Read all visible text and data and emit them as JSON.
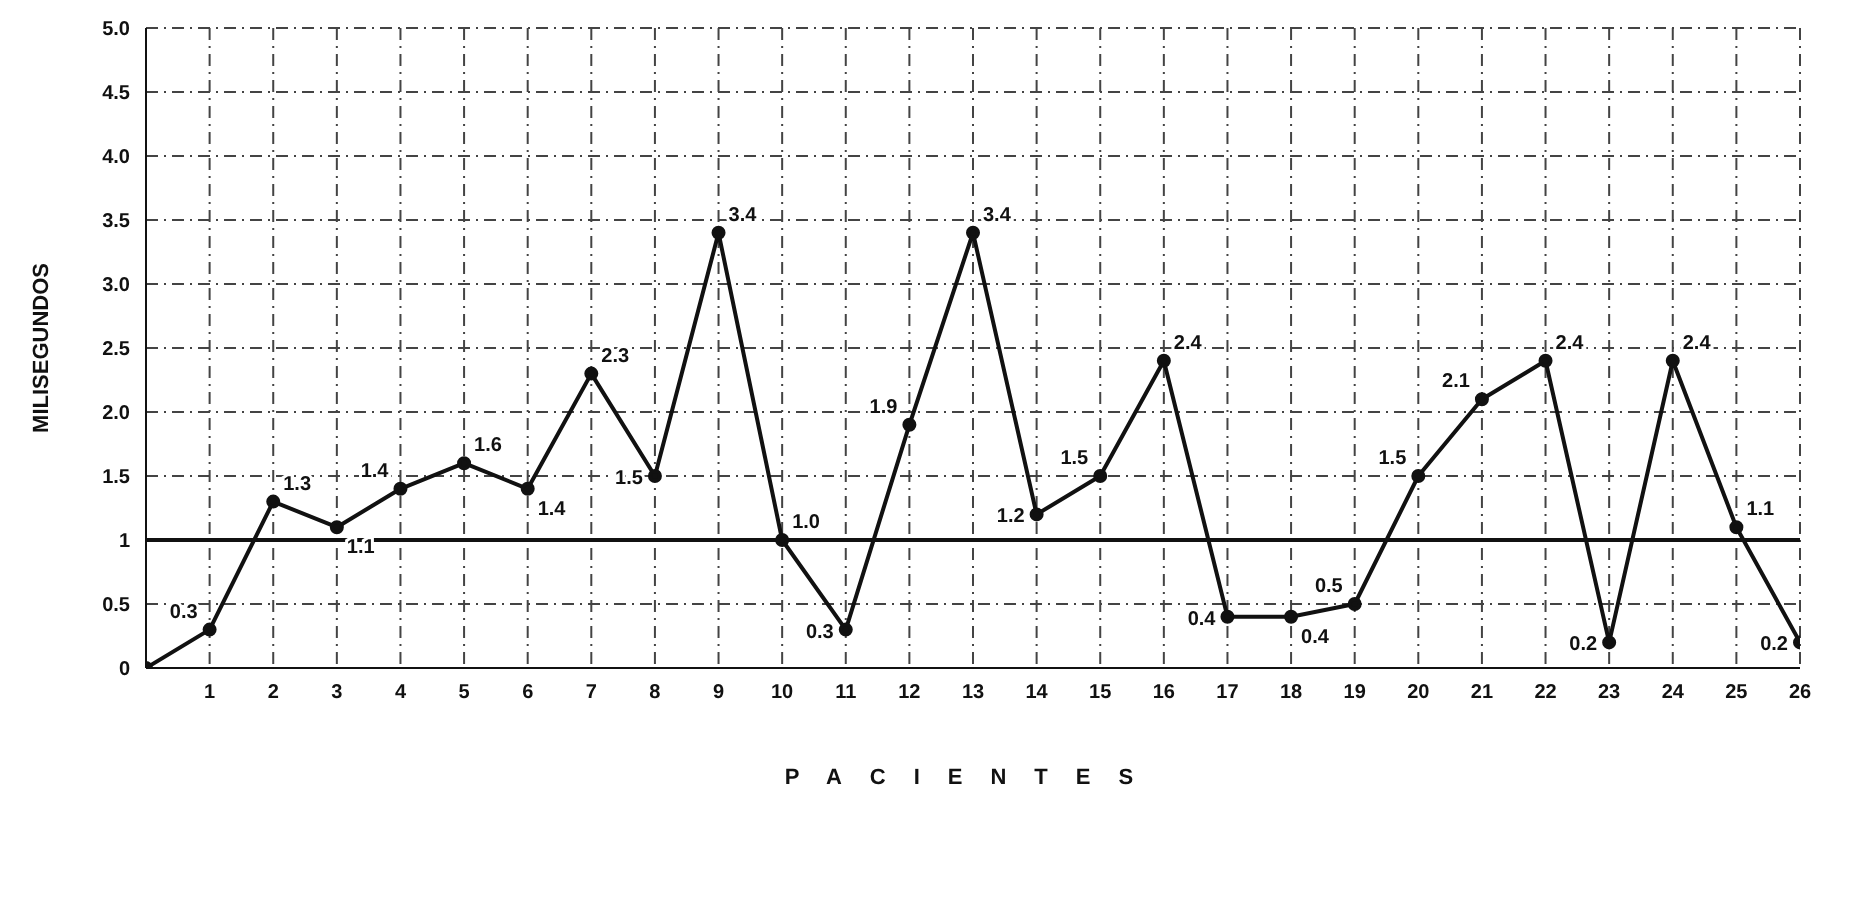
{
  "chart_data": {
    "type": "line",
    "xlabel": "PACIENTES",
    "ylabel": "MILISEGUNDOS",
    "x": [
      0,
      1,
      2,
      3,
      4,
      5,
      6,
      7,
      8,
      9,
      10,
      11,
      12,
      13,
      14,
      15,
      16,
      17,
      18,
      19,
      20,
      21,
      22,
      23,
      24,
      25,
      26
    ],
    "series": [
      {
        "color": "#111111",
        "values": [
          0,
          0.3,
          1.3,
          1.1,
          1.4,
          1.6,
          1.4,
          2.3,
          1.5,
          3.4,
          1.0,
          0.3,
          1.9,
          3.4,
          1.2,
          1.5,
          2.4,
          0.4,
          0.4,
          0.5,
          1.5,
          2.1,
          2.4,
          0.2,
          2.4,
          1.1,
          0.2
        ],
        "value_labels": [
          null,
          "0.3",
          "1.3",
          "1.1",
          "1.4",
          "1.6",
          "1.4",
          "2.3",
          "1.5",
          "3.4",
          "1.0",
          "0.3",
          "1.9",
          "3.4",
          "1.2",
          "1.5",
          "2.4",
          "0.4",
          "0.4",
          "0.5",
          "1.5",
          "2.1",
          "2.4",
          "0.2",
          "2.4",
          "1.1",
          "0.2"
        ]
      }
    ],
    "xlim": [
      0,
      26
    ],
    "xticks": [
      {
        "value": 0,
        "label": null
      },
      1,
      2,
      3,
      4,
      5,
      6,
      7,
      8,
      9,
      10,
      11,
      12,
      13,
      14,
      15,
      16,
      17,
      18,
      19,
      20,
      21,
      22,
      23,
      24,
      25,
      26
    ],
    "ylim": [
      0,
      5
    ],
    "yticks": [
      0,
      0.5,
      1,
      1.5,
      {
        "value": 2,
        "label": "2.0"
      },
      {
        "value": 2.5,
        "label": "2.5"
      },
      {
        "value": 3,
        "label": "3.0"
      },
      {
        "value": 3.5,
        "label": "3.5"
      },
      {
        "value": 4,
        "label": "4.0"
      },
      {
        "value": 4.5,
        "label": "4.5"
      },
      {
        "value": 5,
        "label": "5.0"
      }
    ],
    "ref_lines": [
      {
        "axis": "y",
        "value": 1,
        "color": "#111111",
        "line_style": "solid"
      }
    ],
    "grid": true,
    "marker": "circle",
    "line_style": "solid"
  }
}
